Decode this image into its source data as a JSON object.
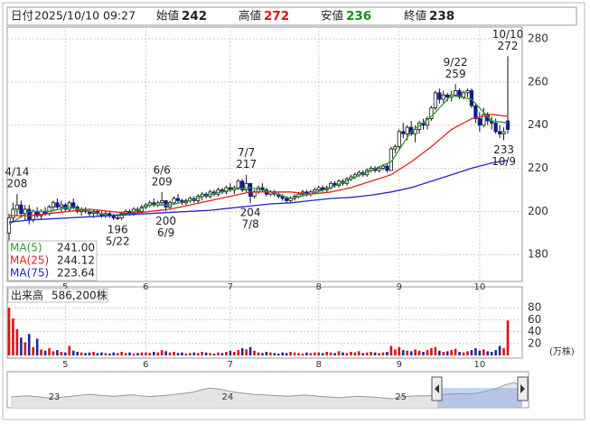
{
  "header": {
    "date_label": "日付",
    "datetime": "2025/10/10 09:27",
    "open_label": "始値",
    "open": 242,
    "high_label": "高値",
    "high": 272,
    "low_label": "安値",
    "low": 236,
    "close_label": "終値",
    "close": 238
  },
  "chart_data": {
    "type": "candlestick",
    "ohlc": [
      [
        190,
        199,
        186,
        197
      ],
      [
        197,
        204,
        195,
        201
      ],
      [
        201,
        208,
        198,
        203
      ],
      [
        203,
        205,
        197,
        199
      ],
      [
        199,
        203,
        196,
        201
      ],
      [
        201,
        203,
        194,
        196
      ],
      [
        196,
        201,
        195,
        200
      ],
      [
        200,
        202,
        197,
        198
      ],
      [
        198,
        201,
        196,
        200
      ],
      [
        200,
        202,
        198,
        199
      ],
      [
        199,
        203,
        198,
        202
      ],
      [
        202,
        205,
        200,
        204
      ],
      [
        204,
        206,
        201,
        202
      ],
      [
        202,
        205,
        200,
        203
      ],
      [
        203,
        204,
        200,
        201
      ],
      [
        201,
        205,
        200,
        204
      ],
      [
        204,
        206,
        201,
        202
      ],
      [
        202,
        203,
        199,
        200
      ],
      [
        200,
        202,
        198,
        201
      ],
      [
        201,
        202,
        199,
        200
      ],
      [
        200,
        201,
        198,
        199
      ],
      [
        199,
        201,
        197,
        200
      ],
      [
        200,
        201,
        198,
        199
      ],
      [
        199,
        200,
        197,
        198
      ],
      [
        198,
        200,
        197,
        199
      ],
      [
        199,
        200,
        197,
        198
      ],
      [
        198,
        199,
        196,
        197
      ],
      [
        197,
        198,
        196,
        197
      ],
      [
        197,
        200,
        196,
        199
      ],
      [
        199,
        201,
        198,
        200
      ],
      [
        200,
        201,
        198,
        199
      ],
      [
        199,
        202,
        198,
        201
      ],
      [
        201,
        202,
        199,
        200
      ],
      [
        200,
        203,
        199,
        202
      ],
      [
        202,
        204,
        201,
        203
      ],
      [
        203,
        205,
        202,
        204
      ],
      [
        204,
        206,
        202,
        203
      ],
      [
        203,
        205,
        202,
        204
      ],
      [
        204,
        209,
        203,
        205
      ],
      [
        205,
        205,
        200,
        202
      ],
      [
        202,
        205,
        201,
        204
      ],
      [
        204,
        207,
        203,
        206
      ],
      [
        206,
        208,
        204,
        205
      ],
      [
        205,
        206,
        203,
        204
      ],
      [
        204,
        206,
        203,
        205
      ],
      [
        205,
        207,
        204,
        206
      ],
      [
        206,
        207,
        204,
        205
      ],
      [
        205,
        208,
        204,
        207
      ],
      [
        207,
        209,
        205,
        208
      ],
      [
        208,
        209,
        206,
        207
      ],
      [
        207,
        210,
        206,
        209
      ],
      [
        209,
        210,
        207,
        208
      ],
      [
        208,
        211,
        207,
        210
      ],
      [
        210,
        211,
        208,
        209
      ],
      [
        209,
        212,
        208,
        211
      ],
      [
        211,
        213,
        209,
        210
      ],
      [
        210,
        212,
        208,
        211
      ],
      [
        211,
        215,
        210,
        214
      ],
      [
        214,
        215,
        209,
        210
      ],
      [
        210,
        217,
        209,
        213
      ],
      [
        213,
        213,
        204,
        207
      ],
      [
        207,
        210,
        206,
        209
      ],
      [
        209,
        212,
        208,
        211
      ],
      [
        211,
        213,
        209,
        210
      ],
      [
        210,
        211,
        207,
        208
      ],
      [
        208,
        210,
        207,
        209
      ],
      [
        209,
        210,
        207,
        208
      ],
      [
        208,
        209,
        206,
        207
      ],
      [
        207,
        208,
        205,
        206
      ],
      [
        206,
        207,
        204,
        205
      ],
      [
        205,
        207,
        204,
        206
      ],
      [
        206,
        208,
        205,
        207
      ],
      [
        207,
        209,
        206,
        208
      ],
      [
        208,
        210,
        207,
        209
      ],
      [
        209,
        210,
        207,
        208
      ],
      [
        208,
        210,
        207,
        209
      ],
      [
        209,
        211,
        208,
        210
      ],
      [
        210,
        212,
        209,
        211
      ],
      [
        211,
        212,
        209,
        210
      ],
      [
        210,
        212,
        209,
        211
      ],
      [
        211,
        214,
        210,
        213
      ],
      [
        213,
        214,
        211,
        212
      ],
      [
        212,
        215,
        211,
        214
      ],
      [
        214,
        215,
        212,
        213
      ],
      [
        213,
        216,
        212,
        215
      ],
      [
        215,
        217,
        214,
        216
      ],
      [
        216,
        218,
        215,
        217
      ],
      [
        217,
        219,
        216,
        218
      ],
      [
        218,
        219,
        216,
        217
      ],
      [
        217,
        220,
        216,
        219
      ],
      [
        219,
        221,
        218,
        220
      ],
      [
        220,
        221,
        218,
        219
      ],
      [
        219,
        221,
        218,
        220
      ],
      [
        220,
        222,
        219,
        221
      ],
      [
        221,
        222,
        218,
        219
      ],
      [
        219,
        230,
        219,
        229
      ],
      [
        229,
        231,
        227,
        230
      ],
      [
        230,
        238,
        229,
        237
      ],
      [
        237,
        241,
        234,
        236
      ],
      [
        236,
        240,
        233,
        239
      ],
      [
        239,
        242,
        235,
        236
      ],
      [
        236,
        240,
        232,
        238
      ],
      [
        238,
        242,
        236,
        241
      ],
      [
        241,
        243,
        238,
        240
      ],
      [
        240,
        244,
        238,
        243
      ],
      [
        243,
        249,
        242,
        248
      ],
      [
        248,
        256,
        247,
        255
      ],
      [
        255,
        257,
        250,
        252
      ],
      [
        252,
        256,
        250,
        254
      ],
      [
        254,
        255,
        251,
        253
      ],
      [
        253,
        256,
        251,
        254
      ],
      [
        254,
        259,
        253,
        256
      ],
      [
        256,
        257,
        252,
        253
      ],
      [
        253,
        256,
        252,
        255
      ],
      [
        255,
        257,
        253,
        256
      ],
      [
        256,
        257,
        248,
        249
      ],
      [
        249,
        250,
        241,
        243
      ],
      [
        243,
        246,
        237,
        240
      ],
      [
        240,
        248,
        239,
        245
      ],
      [
        245,
        246,
        240,
        242
      ],
      [
        242,
        244,
        238,
        241
      ],
      [
        241,
        243,
        236,
        237
      ],
      [
        237,
        240,
        234,
        236
      ],
      [
        236,
        239,
        233,
        237
      ],
      [
        242,
        272,
        236,
        238
      ]
    ],
    "up_color": "#ffffff",
    "down_color": "#0a1e8c",
    "ylim": [
      167.5,
      285.5
    ],
    "yticks": [
      180,
      200,
      220,
      240,
      260,
      280
    ],
    "xticks": [
      {
        "value": 14,
        "label": "5"
      },
      {
        "value": 34,
        "label": "6"
      },
      {
        "value": 55,
        "label": "7"
      },
      {
        "value": 77,
        "label": "8"
      },
      {
        "value": 97,
        "label": "9"
      },
      {
        "value": 117,
        "label": "10"
      }
    ],
    "grid": true,
    "annotations": [
      {
        "x": 2,
        "date": "4/14",
        "value": 208,
        "position": "above"
      },
      {
        "x": 27,
        "date": "5/22",
        "value": 196,
        "position": "below"
      },
      {
        "x": 38,
        "date": "6/6",
        "value": 209,
        "position": "above"
      },
      {
        "x": 39,
        "date": "6/9",
        "value": 200,
        "position": "below"
      },
      {
        "x": 59,
        "date": "7/7",
        "value": 217,
        "position": "above"
      },
      {
        "x": 60,
        "date": "7/8",
        "value": 204,
        "position": "below"
      },
      {
        "x": 111,
        "date": "9/22",
        "value": 259,
        "position": "above"
      },
      {
        "x": 124,
        "date": "10/10",
        "value": 272,
        "position": "above"
      },
      {
        "x": 123,
        "date": "10/9",
        "value": 233,
        "position": "below"
      }
    ],
    "ma_x": [
      0,
      5,
      10,
      15,
      20,
      25,
      30,
      35,
      40,
      45,
      50,
      55,
      60,
      65,
      70,
      75,
      80,
      85,
      90,
      95,
      100,
      105,
      110,
      115,
      120,
      124
    ],
    "series": [
      {
        "name": "MA(5)",
        "color": "#2e9a2e",
        "values": [
          194,
          200,
          200,
          202,
          200,
          198,
          199,
          203,
          203,
          205,
          208,
          210,
          211,
          209,
          206,
          208,
          211,
          215,
          219,
          223,
          237,
          244,
          254,
          252,
          242,
          241.0
        ],
        "value_label": "241.00"
      },
      {
        "name": "MA(25)",
        "color": "#e02020",
        "values": [
          198,
          198,
          199,
          200,
          201,
          200,
          199,
          200,
          201,
          203,
          205,
          207,
          209,
          209,
          209,
          208,
          209,
          211,
          214,
          217,
          223,
          230,
          238,
          243,
          245,
          244.12
        ]
      },
      {
        "name": "MA(75)",
        "color": "#2424c8",
        "values": [
          195,
          196,
          196.5,
          197,
          197.5,
          198,
          198.5,
          199,
          199.5,
          200,
          200.5,
          201.5,
          202.5,
          203.5,
          204,
          205,
          206,
          206.5,
          207.5,
          209,
          211,
          214,
          217,
          220,
          222.5,
          223.64
        ]
      }
    ],
    "volume": {
      "title": "出来高",
      "value_label": "586,200株",
      "unit": "(万株)",
      "up_color": "#e01010",
      "down_color": "#1a2a9a",
      "values": [
        80,
        62,
        44,
        30,
        22,
        36,
        14,
        28,
        10,
        8,
        12,
        7,
        9,
        6,
        5,
        16,
        8,
        6,
        5,
        4,
        5,
        6,
        4,
        5,
        4,
        3,
        5,
        4,
        6,
        4,
        5,
        3,
        4,
        5,
        5,
        4,
        6,
        5,
        9,
        7,
        5,
        6,
        4,
        5,
        3,
        4,
        5,
        4,
        6,
        5,
        4,
        3,
        5,
        4,
        6,
        8,
        6,
        9,
        12,
        10,
        14,
        8,
        5,
        4,
        6,
        5,
        4,
        3,
        5,
        4,
        6,
        5,
        4,
        3,
        5,
        4,
        5,
        5,
        4,
        6,
        5,
        4,
        7,
        5,
        4,
        6,
        5,
        7,
        4,
        5,
        6,
        5,
        4,
        5,
        6,
        16,
        10,
        14,
        9,
        8,
        7,
        10,
        8,
        6,
        9,
        12,
        14,
        8,
        6,
        7,
        9,
        11,
        6,
        5,
        7,
        9,
        12,
        8,
        10,
        7,
        6,
        9,
        16,
        12,
        58.62
      ],
      "ylim": [
        0,
        115
      ],
      "yticks": [
        20,
        40,
        60,
        80
      ]
    },
    "navigator": {
      "values": [
        195,
        198,
        200,
        196,
        192,
        190,
        194,
        198,
        202,
        205,
        203,
        200,
        198,
        201,
        204,
        200,
        197,
        199,
        202,
        206,
        210,
        215,
        225,
        232,
        228,
        220,
        214,
        210,
        206,
        204,
        202,
        200,
        198,
        201,
        203,
        200,
        196,
        194,
        192,
        195,
        198,
        196,
        194,
        190,
        188,
        195,
        198,
        200,
        199,
        202,
        205,
        208,
        209,
        208,
        212,
        220,
        230,
        245,
        255,
        240
      ],
      "ylim": [
        150,
        300
      ],
      "xticks": [
        {
          "value": 5,
          "label": "23"
        },
        {
          "value": 25,
          "label": "24"
        },
        {
          "value": 45,
          "label": "25"
        }
      ]
    }
  }
}
